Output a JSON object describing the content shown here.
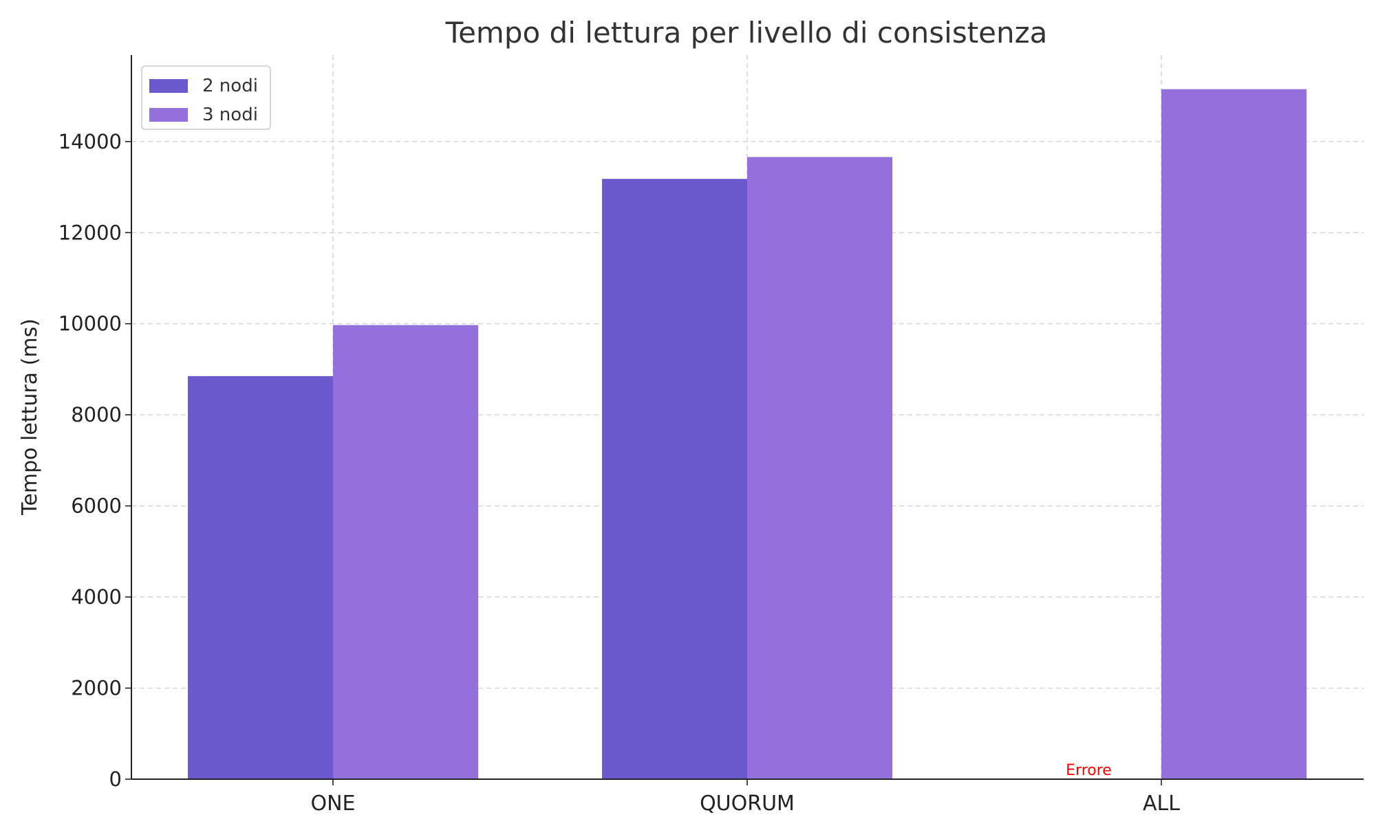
{
  "chart_data": {
    "type": "bar",
    "title": "Tempo di lettura per livello di consistenza",
    "xlabel": "",
    "ylabel": "Tempo lettura (ms)",
    "categories": [
      "ONE",
      "QUORUM",
      "ALL"
    ],
    "series": [
      {
        "name": "2 nodi",
        "values": [
          8850,
          13180,
          null
        ],
        "color": "#6a5acd"
      },
      {
        "name": "3 nodi",
        "values": [
          9970,
          13660,
          15150
        ],
        "color": "#9370db"
      }
    ],
    "ylim": [
      0,
      15900
    ],
    "yticks": [
      0,
      2000,
      4000,
      6000,
      8000,
      10000,
      12000,
      14000
    ],
    "grid": true,
    "legend_position": "top-left",
    "annotations": [
      {
        "text": "Errore",
        "category": "ALL",
        "series": "2 nodi",
        "color": "#ff0000"
      }
    ]
  }
}
